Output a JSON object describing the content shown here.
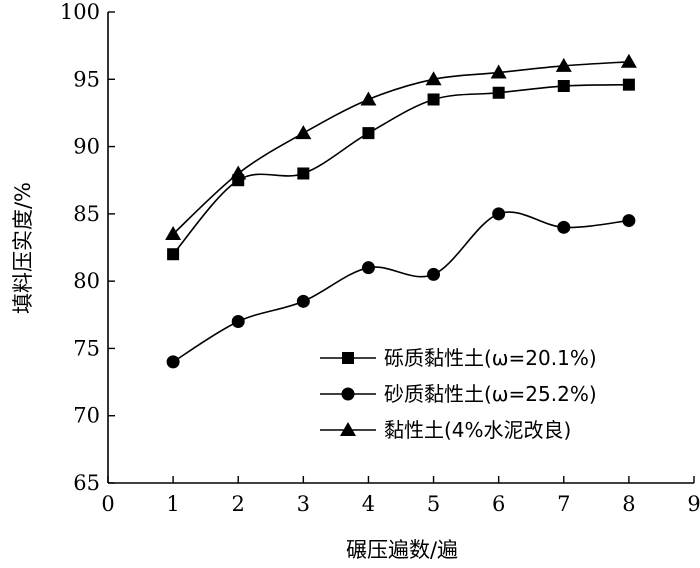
{
  "chart_data": {
    "type": "line",
    "title": "",
    "xlabel": "碾压遍数/遍",
    "ylabel": "填料压实度/%",
    "xlim": [
      0,
      9
    ],
    "ylim": [
      65,
      100
    ],
    "xticks": [
      "0",
      "1",
      "2",
      "3",
      "4",
      "5",
      "6",
      "7",
      "8",
      "9"
    ],
    "yticks": [
      "65",
      "70",
      "75",
      "80",
      "85",
      "90",
      "95",
      "100"
    ],
    "grid": false,
    "legend_position": "bottom-right",
    "x": [
      1,
      2,
      3,
      4,
      5,
      6,
      7,
      8
    ],
    "series": [
      {
        "name": "砾质黏性土(ω=20.1%)",
        "marker": "square",
        "values": [
          82.0,
          87.5,
          88.0,
          91.0,
          93.5,
          94.0,
          94.5,
          94.6
        ]
      },
      {
        "name": "砂质黏性土(ω=25.2%)",
        "marker": "circle",
        "values": [
          74.0,
          77.0,
          78.5,
          81.0,
          80.5,
          85.0,
          84.0,
          84.5
        ]
      },
      {
        "name": "黏性土(4%水泥改良)",
        "marker": "triangle",
        "values": [
          83.5,
          88.0,
          91.0,
          93.5,
          95.0,
          95.5,
          96.0,
          96.3
        ]
      }
    ]
  }
}
